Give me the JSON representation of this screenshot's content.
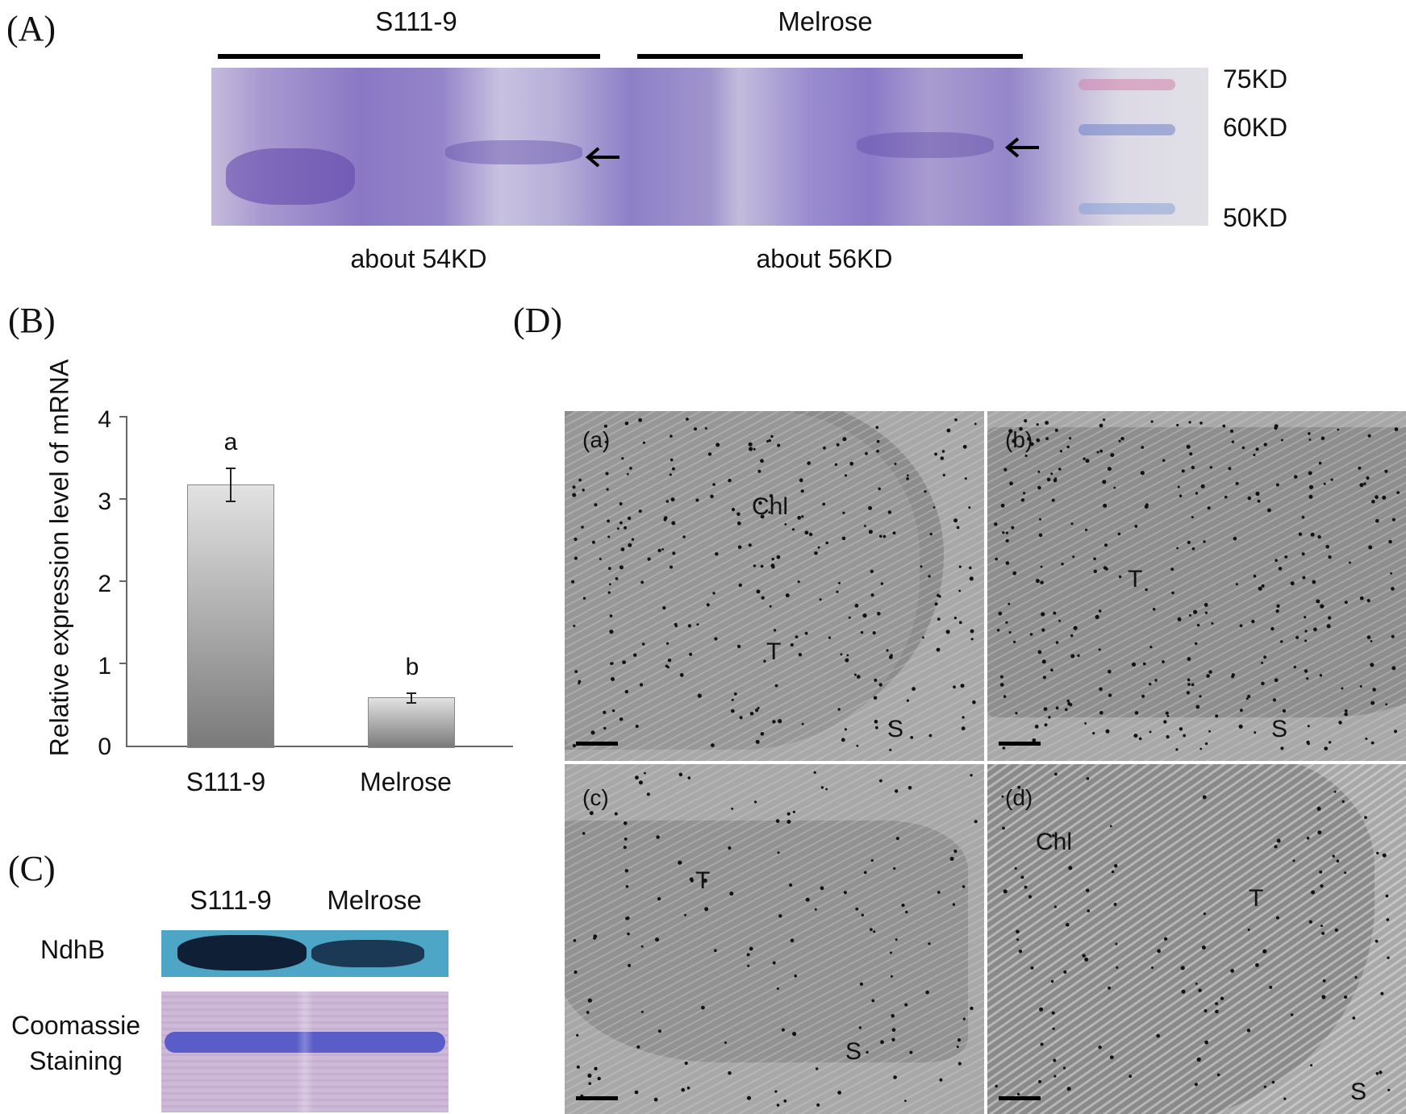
{
  "panels": {
    "A": {
      "label": "(A)",
      "group_left": "S111-9",
      "group_right": "Melrose",
      "markers": [
        "75KD",
        "60KD",
        "50KD"
      ],
      "size_left": "about 54KD",
      "size_right": "about 56KD",
      "arrow_icon": "left-arrow-icon"
    },
    "B": {
      "label": "(B)",
      "ylabel": "Relative expression level of mRNA",
      "yticks": [
        "4",
        "3",
        "2",
        "1",
        "0"
      ],
      "categories": [
        "S111-9",
        "Melrose"
      ],
      "sig_letters": [
        "a",
        "b"
      ]
    },
    "C": {
      "label": "(C)",
      "lanes": [
        "S111-9",
        "Melrose"
      ],
      "rows": [
        "NdhB",
        "Coomassie\nStaining"
      ]
    },
    "D": {
      "label": "(D)",
      "subpanels": [
        {
          "tag": "(a)",
          "chl": "Chl",
          "t": "T",
          "s": "S"
        },
        {
          "tag": "(b)",
          "chl": "",
          "t": "T",
          "s": "S"
        },
        {
          "tag": "(c)",
          "chl": "",
          "t": "T",
          "s": "S"
        },
        {
          "tag": "(d)",
          "chl": "Chl",
          "t": "T",
          "s": "S"
        }
      ]
    }
  },
  "chart_data": {
    "type": "bar",
    "title": "",
    "xlabel": "",
    "ylabel": "Relative expression level of mRNA",
    "categories": [
      "S111-9",
      "Melrose"
    ],
    "values": [
      3.18,
      0.6
    ],
    "errors": [
      0.2,
      0.06
    ],
    "annotations": [
      "a",
      "b"
    ],
    "ylim": [
      0,
      4
    ],
    "grid": false,
    "legend": "none"
  }
}
